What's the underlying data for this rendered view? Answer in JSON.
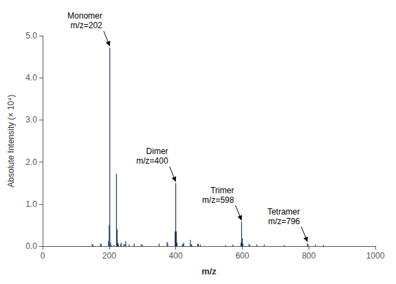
{
  "chart_data": {
    "type": "stem",
    "title": "",
    "xlabel": "m/z",
    "ylabel": "Absolute Intensity (× 10⁴)",
    "color": "#1a3a5c",
    "grid": false,
    "xlim": [
      0,
      1000
    ],
    "ylim": [
      0,
      5.0
    ],
    "xticks": [
      0,
      200,
      400,
      600,
      800,
      1000
    ],
    "yticks": [
      {
        "value": 0.0,
        "label": "0.0"
      },
      {
        "value": 1.0,
        "label": "1.0"
      },
      {
        "value": 2.0,
        "label": "2.0"
      },
      {
        "value": 3.0,
        "label": "3.0"
      },
      {
        "value": 4.0,
        "label": "4.0"
      },
      {
        "value": 5.0,
        "label": "5.0"
      }
    ],
    "x": [
      149,
      151,
      174,
      176,
      198,
      200,
      202,
      204,
      206,
      214,
      222,
      224,
      226,
      228,
      234,
      236,
      244,
      248,
      250,
      260,
      275,
      296,
      300,
      350,
      374,
      376,
      398,
      400,
      402,
      404,
      420,
      422,
      424,
      444,
      446,
      448,
      466,
      468,
      474,
      550,
      572,
      596,
      598,
      600,
      602,
      620,
      622,
      644,
      666,
      726,
      796,
      798,
      820,
      844
    ],
    "values": [
      0.05,
      0.04,
      0.06,
      0.05,
      0.12,
      0.5,
      4.72,
      0.08,
      0.03,
      0.03,
      1.72,
      0.4,
      0.08,
      0.04,
      0.04,
      0.08,
      0.05,
      0.05,
      0.12,
      0.04,
      0.06,
      0.04,
      0.04,
      0.06,
      0.1,
      0.07,
      0.35,
      1.5,
      0.35,
      0.08,
      0.04,
      0.05,
      0.08,
      0.15,
      0.05,
      0.04,
      0.06,
      0.05,
      0.04,
      0.03,
      0.04,
      0.08,
      0.58,
      0.18,
      0.06,
      0.04,
      0.05,
      0.04,
      0.04,
      0.03,
      0.07,
      0.04,
      0.04,
      0.03
    ],
    "annotations": [
      {
        "text": "Monomer\nm/z=202",
        "x": 202,
        "y": 4.72
      },
      {
        "text": "Dimer\nm/z=400",
        "x": 400,
        "y": 1.5
      },
      {
        "text": "Trimer\nm/z=598",
        "x": 598,
        "y": 0.58
      },
      {
        "text": "Tetramer\nm/z=796",
        "x": 796,
        "y": 0.07
      }
    ]
  }
}
